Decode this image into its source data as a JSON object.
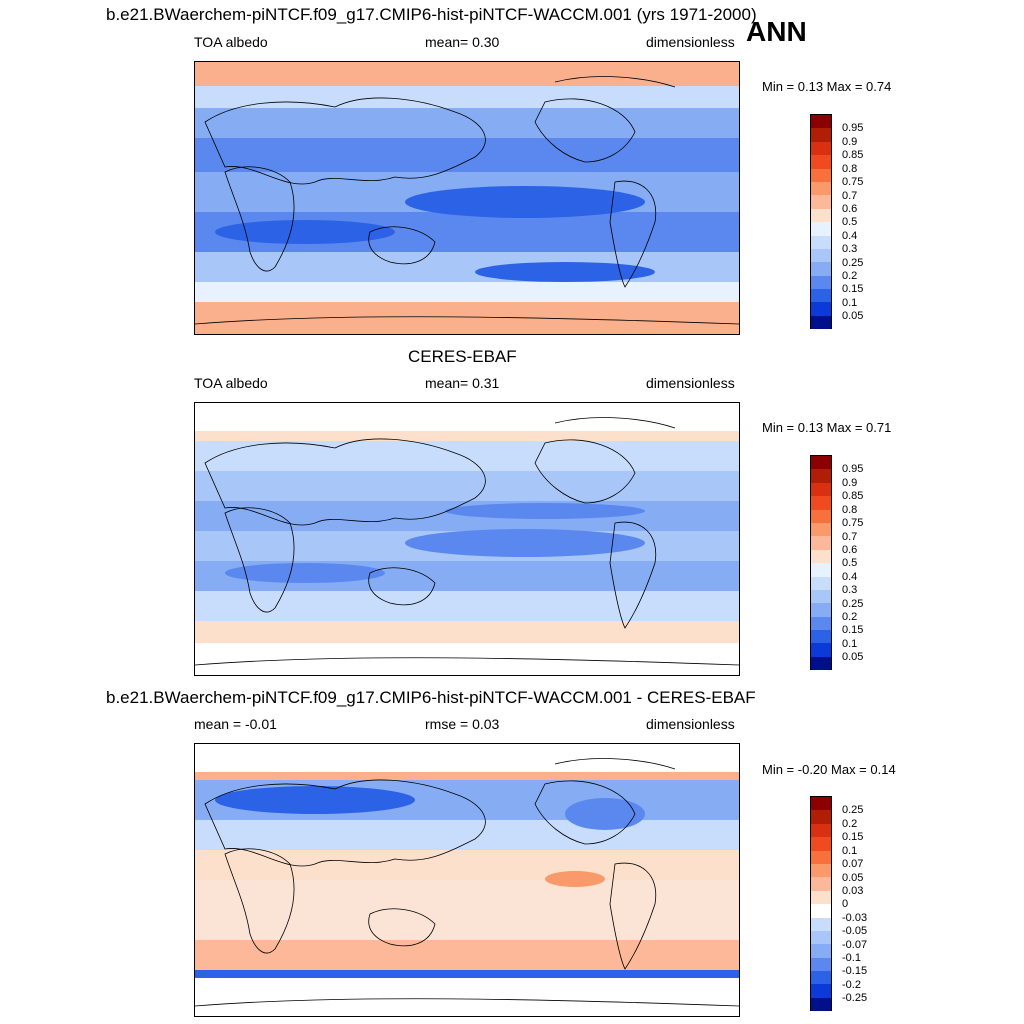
{
  "season": "ANN",
  "panels": [
    {
      "title": "b.e21.BWaerchem-piNTCF.f09_g17.CMIP6-hist-piNTCF-WACCM.001 (yrs 1971-2000)",
      "left_label": "TOA albedo",
      "center_label": "mean=   0.30",
      "right_label": "dimensionless",
      "minmax": "Min =   0.13 Max =   0.74",
      "kind": "abs"
    },
    {
      "title": "CERES-EBAF",
      "left_label": "TOA albedo",
      "center_label": "mean=   0.31",
      "right_label": "dimensionless",
      "minmax": "Min =   0.13 Max =   0.71",
      "kind": "abs"
    },
    {
      "title": "b.e21.BWaerchem-piNTCF.f09_g17.CMIP6-hist-piNTCF-WACCM.001 - CERES-EBAF",
      "left_label": "mean =  -0.01",
      "center_label": "rmse =   0.03",
      "right_label": "dimensionless",
      "minmax": "Min =  -0.20 Max =   0.14",
      "kind": "diff"
    }
  ],
  "colorbars": {
    "abs": {
      "labels": [
        "0.95",
        "0.9",
        "0.85",
        "0.8",
        "0.75",
        "0.7",
        "0.6",
        "0.5",
        "0.4",
        "0.3",
        "0.25",
        "0.2",
        "0.15",
        "0.1",
        "0.05"
      ],
      "colors": [
        "#8b0000",
        "#b01e05",
        "#d83010",
        "#f04a20",
        "#f8703c",
        "#fa9a6a",
        "#fcb898",
        "#fde0cc",
        "#e8f2fe",
        "#c8dcfb",
        "#a8c6f8",
        "#86acf4",
        "#5a88ee",
        "#2c62e6",
        "#0c3ad8",
        "#00108a"
      ]
    },
    "diff": {
      "labels": [
        "0.25",
        "0.2",
        "0.15",
        "0.1",
        "0.07",
        "0.05",
        "0.03",
        "0",
        "-0.03",
        "-0.05",
        "-0.07",
        "-0.1",
        "-0.15",
        "-0.2",
        "-0.25"
      ],
      "colors": [
        "#8b0000",
        "#b01e05",
        "#d83010",
        "#f04a20",
        "#f8703c",
        "#fa9a6a",
        "#fcb898",
        "#fde0cc",
        "#ffffff",
        "#c8dcfb",
        "#a8c6f8",
        "#86acf4",
        "#5a88ee",
        "#2c62e6",
        "#0c3ad8",
        "#00108a"
      ]
    }
  },
  "colors": {
    "polar_high": "#fab08c",
    "mid_high": "#fde0cc",
    "light_blue": "#c8dcfb",
    "mid_blue": "#86acf4",
    "deep_blue": "#2c62e6",
    "neutral": "#fbe4d6"
  }
}
